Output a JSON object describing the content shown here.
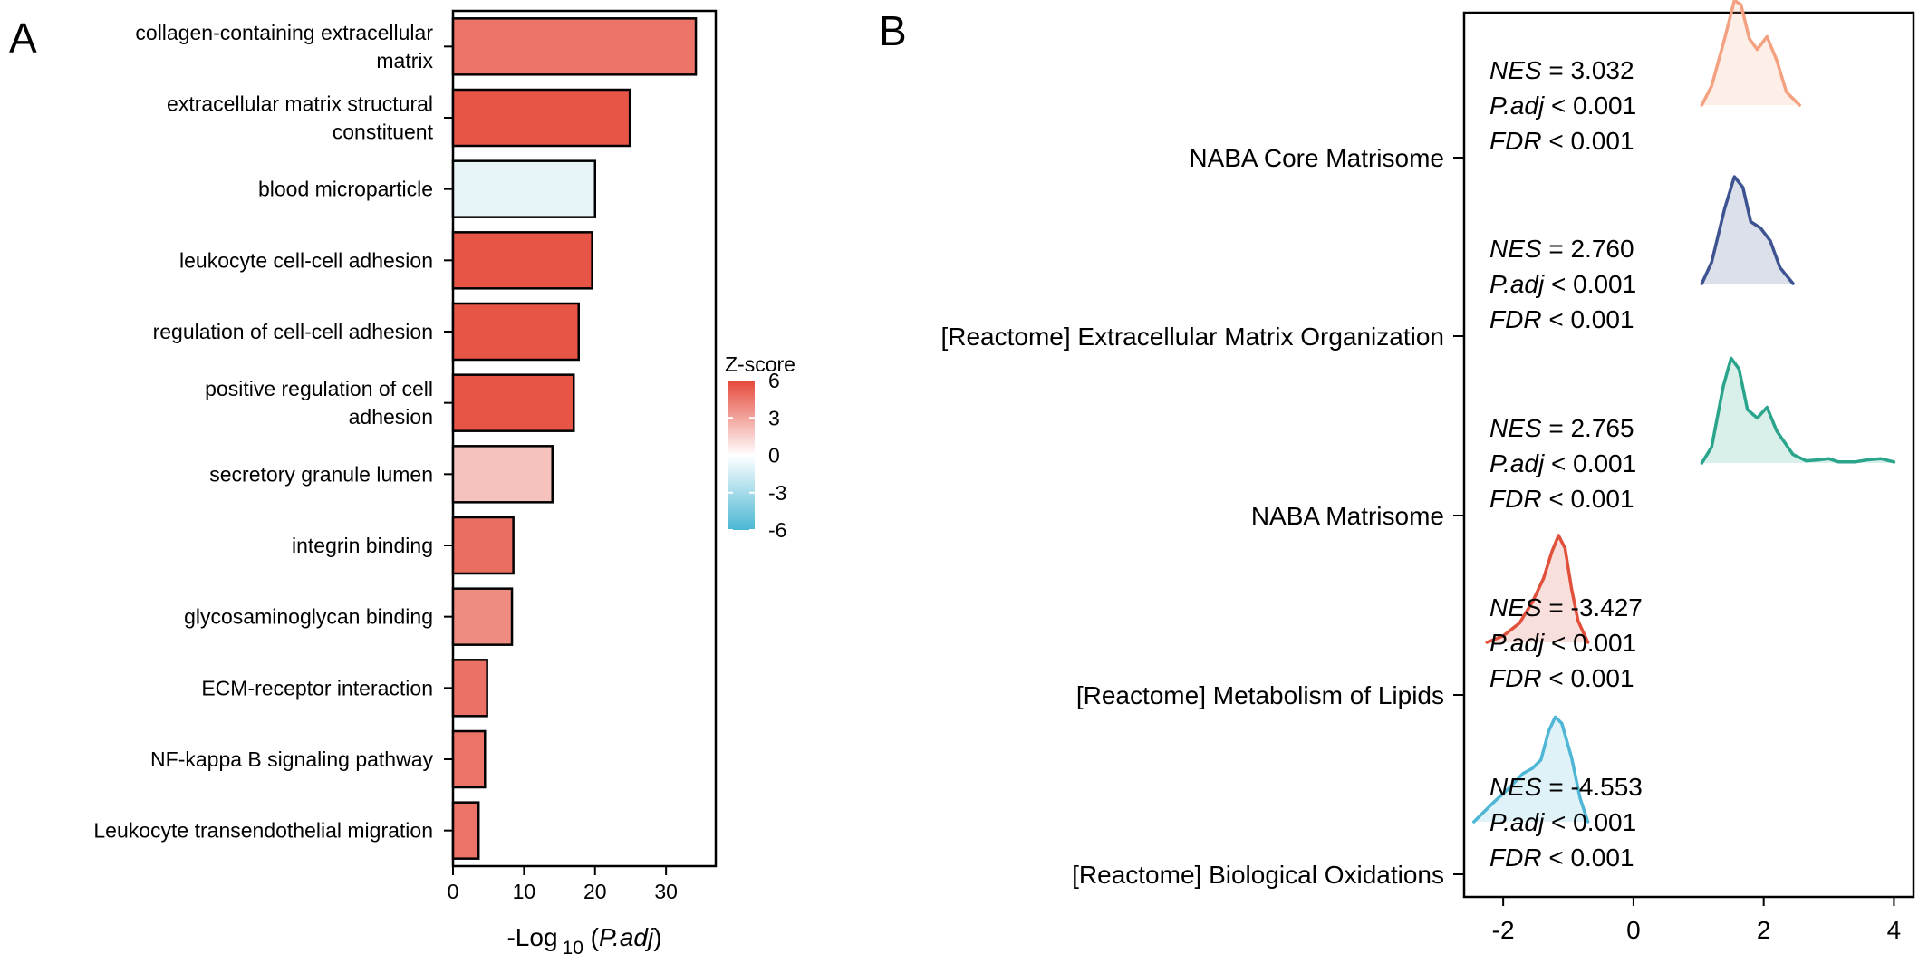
{
  "chart_data": [
    {
      "panel": "A",
      "type": "bar",
      "orientation": "horizontal",
      "categories": [
        "collagen-containing extracellular\nmatrix",
        "extracellular matrix structural\nconstituent",
        "blood microparticle",
        "leukocyte cell-cell adhesion",
        "regulation of cell-cell adhesion",
        "positive regulation of cell\nadhesion",
        "secretory granule lumen",
        "integrin binding",
        "glycosaminoglycan binding",
        "ECM-receptor interaction",
        "NF-kappa B signaling pathway",
        "Leukocyte transendothelial migration"
      ],
      "values": [
        34.2,
        24.9,
        20.0,
        19.6,
        17.7,
        17.0,
        14.0,
        8.5,
        8.3,
        4.8,
        4.5,
        3.6
      ],
      "zscores": [
        4.6,
        5.6,
        -0.8,
        5.6,
        5.6,
        5.6,
        2.0,
        4.8,
        3.8,
        4.7,
        4.6,
        4.6
      ],
      "xlabel": {
        "pre": "-Log",
        "sub": "10",
        "italic": "P.adj"
      },
      "xlim": [
        0,
        37
      ],
      "xticks": [
        0,
        10,
        20,
        30
      ],
      "legend": {
        "title": "Z-score",
        "range": [
          -6,
          6
        ],
        "ticks": [
          "6",
          "3",
          "0",
          "-3",
          "-6"
        ],
        "colors": [
          "#e5493a",
          "#ffffff",
          "#4ab7d4"
        ],
        "placement": "right"
      }
    },
    {
      "panel": "B",
      "type": "ridgeline",
      "xlim": [
        -2.6,
        4.3
      ],
      "xticks": [
        -2,
        0,
        2,
        4
      ],
      "stat_labels": [
        "NES",
        "P.adj",
        "FDR"
      ],
      "series": [
        {
          "name": "NABA Core Matrisome",
          "color": "#f4a182",
          "nes": "3.032",
          "padj": "< 0.001",
          "fdr": "< 0.001",
          "density": [
            [
              1.05,
              0
            ],
            [
              1.2,
              0.18
            ],
            [
              1.4,
              0.62
            ],
            [
              1.55,
              0.98
            ],
            [
              1.65,
              0.94
            ],
            [
              1.78,
              0.62
            ],
            [
              1.9,
              0.52
            ],
            [
              2.05,
              0.64
            ],
            [
              2.2,
              0.42
            ],
            [
              2.35,
              0.12
            ],
            [
              2.55,
              0
            ]
          ]
        },
        {
          "name": "[Reactome] Extracellular Matrix Organization",
          "color": "#3e5491",
          "nes": "2.760",
          "padj": "< 0.001",
          "fdr": "< 0.001",
          "density": [
            [
              1.05,
              0
            ],
            [
              1.2,
              0.2
            ],
            [
              1.4,
              0.7
            ],
            [
              1.55,
              1.0
            ],
            [
              1.68,
              0.9
            ],
            [
              1.8,
              0.58
            ],
            [
              1.95,
              0.52
            ],
            [
              2.1,
              0.4
            ],
            [
              2.25,
              0.15
            ],
            [
              2.45,
              0
            ]
          ]
        },
        {
          "name": "NABA Matrisome",
          "color": "#2aa58c",
          "nes": "2.765",
          "padj": "< 0.001",
          "fdr": "< 0.001",
          "density": [
            [
              1.05,
              0
            ],
            [
              1.2,
              0.15
            ],
            [
              1.38,
              0.72
            ],
            [
              1.5,
              0.98
            ],
            [
              1.62,
              0.88
            ],
            [
              1.75,
              0.5
            ],
            [
              1.9,
              0.42
            ],
            [
              2.05,
              0.52
            ],
            [
              2.2,
              0.3
            ],
            [
              2.45,
              0.08
            ],
            [
              2.65,
              0.02
            ],
            [
              2.85,
              0.03
            ],
            [
              3.0,
              0.04
            ],
            [
              3.15,
              0.01
            ],
            [
              3.4,
              0.01
            ],
            [
              3.6,
              0.03
            ],
            [
              3.8,
              0.04
            ],
            [
              4.0,
              0.01
            ]
          ]
        },
        {
          "name": "[Reactome] Metabolism of Lipids",
          "color": "#e0503b",
          "nes": "-3.427",
          "padj": "< 0.001",
          "fdr": "< 0.001",
          "density": [
            [
              -2.25,
              0
            ],
            [
              -2.0,
              0.06
            ],
            [
              -1.75,
              0.18
            ],
            [
              -1.55,
              0.38
            ],
            [
              -1.38,
              0.6
            ],
            [
              -1.25,
              0.85
            ],
            [
              -1.15,
              1.0
            ],
            [
              -1.05,
              0.88
            ],
            [
              -0.95,
              0.5
            ],
            [
              -0.85,
              0.2
            ],
            [
              -0.7,
              0
            ]
          ]
        },
        {
          "name": "[Reactome] Biological Oxidations",
          "color": "#4fb6d6",
          "nes": "-4.553",
          "padj": "< 0.001",
          "fdr": "< 0.001",
          "density": [
            [
              -2.45,
              0
            ],
            [
              -2.15,
              0.18
            ],
            [
              -1.9,
              0.32
            ],
            [
              -1.7,
              0.45
            ],
            [
              -1.55,
              0.5
            ],
            [
              -1.42,
              0.58
            ],
            [
              -1.3,
              0.85
            ],
            [
              -1.2,
              0.98
            ],
            [
              -1.1,
              0.92
            ],
            [
              -0.95,
              0.6
            ],
            [
              -0.82,
              0.22
            ],
            [
              -0.7,
              0
            ]
          ]
        }
      ]
    }
  ],
  "panel_labels": {
    "a": "A",
    "b": "B"
  }
}
